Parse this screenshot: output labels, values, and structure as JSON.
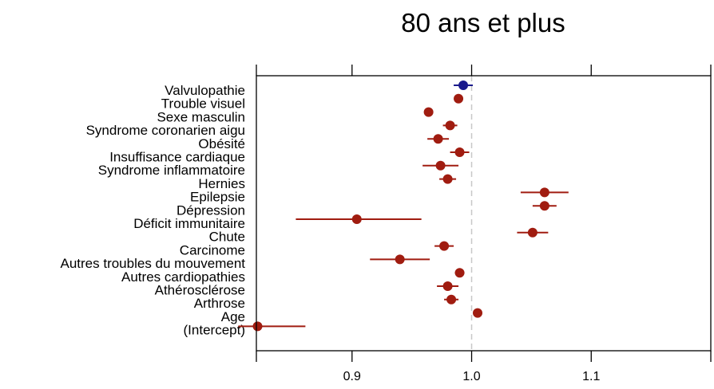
{
  "chart_data": {
    "type": "scatter",
    "title": "80 ans et plus",
    "xlim": [
      0.82,
      1.2
    ],
    "x_ticks": [
      0.9,
      1.0,
      1.1
    ],
    "x_tick_labels": [
      "0.9",
      "1.0",
      "1.1"
    ],
    "reference_line": 1.0,
    "grid": false,
    "labels": [
      "Valvulopathie",
      "Trouble visuel",
      "Sexe masculin",
      "Syndrome coronarien aigu",
      "Obésité",
      "Insuffisance cardiaque",
      "Syndrome inflammatoire",
      "Hernies",
      "Epilepsie",
      "Dépression",
      "Déficit immunitaire",
      "Chute",
      "Carcinome",
      "Autres troubles du mouvement",
      "Autres cardiopathies",
      "Athérosclérose",
      "Arthrose",
      "Age",
      "(Intercept)"
    ],
    "points": [
      {
        "estimate": 0.993,
        "lower": 0.985,
        "upper": 1.001,
        "color": "#1a1a8c"
      },
      {
        "estimate": 0.989,
        "lower": 0.987,
        "upper": 0.991,
        "color": "#a01c10"
      },
      {
        "estimate": 0.964,
        "lower": 0.962,
        "upper": 0.966,
        "color": "#a01c10"
      },
      {
        "estimate": 0.982,
        "lower": 0.976,
        "upper": 0.988,
        "color": "#a01c10"
      },
      {
        "estimate": 0.972,
        "lower": 0.963,
        "upper": 0.981,
        "color": "#a01c10"
      },
      {
        "estimate": 0.99,
        "lower": 0.982,
        "upper": 0.998,
        "color": "#a01c10"
      },
      {
        "estimate": 0.974,
        "lower": 0.959,
        "upper": 0.989,
        "color": "#a01c10"
      },
      {
        "estimate": 0.98,
        "lower": 0.973,
        "upper": 0.987,
        "color": "#a01c10"
      },
      {
        "estimate": 1.061,
        "lower": 1.041,
        "upper": 1.081,
        "color": "#a01c10"
      },
      {
        "estimate": 1.061,
        "lower": 1.051,
        "upper": 1.071,
        "color": "#a01c10"
      },
      {
        "estimate": 0.904,
        "lower": 0.853,
        "upper": 0.958,
        "color": "#a01c10"
      },
      {
        "estimate": 1.051,
        "lower": 1.038,
        "upper": 1.064,
        "color": "#a01c10"
      },
      {
        "estimate": 0.977,
        "lower": 0.969,
        "upper": 0.985,
        "color": "#a01c10"
      },
      {
        "estimate": 0.94,
        "lower": 0.915,
        "upper": 0.965,
        "color": "#a01c10"
      },
      {
        "estimate": 0.99,
        "lower": 0.986,
        "upper": 0.994,
        "color": "#a01c10"
      },
      {
        "estimate": 0.98,
        "lower": 0.971,
        "upper": 0.989,
        "color": "#a01c10"
      },
      {
        "estimate": 0.983,
        "lower": 0.977,
        "upper": 0.989,
        "color": "#a01c10"
      },
      {
        "estimate": 1.005,
        "lower": 1.004,
        "upper": 1.006,
        "color": "#a01c10"
      },
      {
        "estimate": 0.821,
        "lower": 0.805,
        "upper": 0.861,
        "color": "#a01c10"
      }
    ]
  }
}
